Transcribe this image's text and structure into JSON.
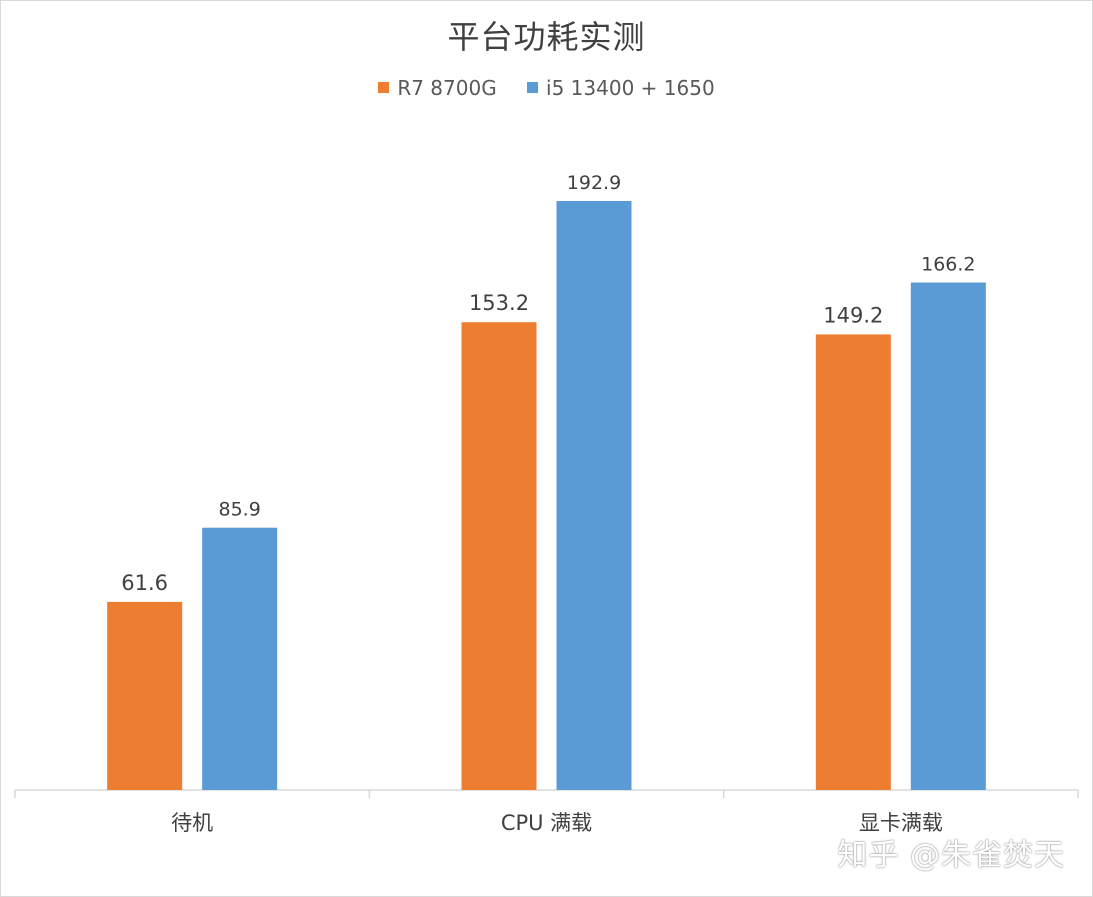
{
  "chart_data": {
    "type": "bar",
    "title": "平台功耗实测",
    "categories": [
      "待机",
      "CPU 满载",
      "显卡满载"
    ],
    "series": [
      {
        "name": "R7 8700G",
        "color": "#ED7D31",
        "values": [
          61.6,
          153.2,
          149.2
        ]
      },
      {
        "name": "i5 13400 + 1650",
        "color": "#5B9BD5",
        "values": [
          85.9,
          192.9,
          166.2
        ]
      }
    ],
    "value_labels": [
      [
        "61.6",
        "153.2",
        "149.2"
      ],
      [
        "85.9",
        "192.9",
        "166.2"
      ]
    ],
    "ylim": [
      0,
      220
    ],
    "xlabel": "",
    "ylabel": "",
    "grid": false,
    "legend": "top"
  },
  "watermark": "知乎 @朱雀焚天"
}
